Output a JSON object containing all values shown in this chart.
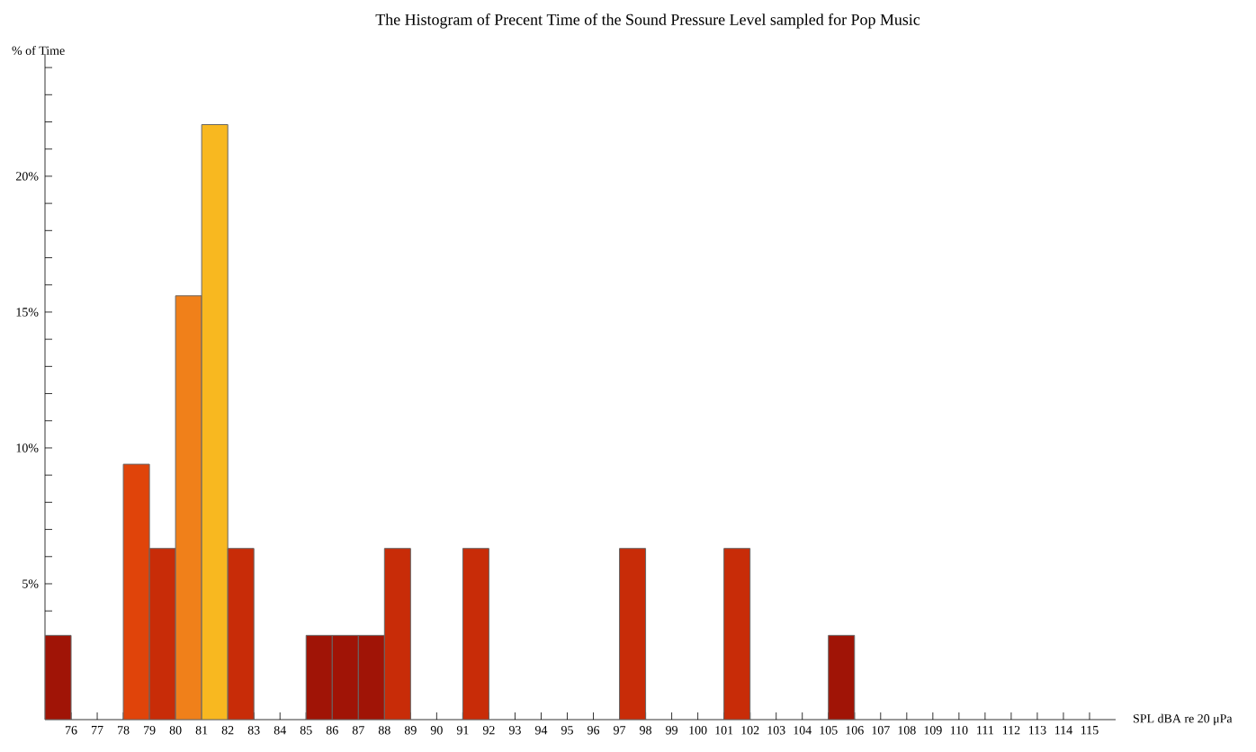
{
  "chart_data": {
    "type": "histogram",
    "title": "The Histogram of Precent Time of the Sound Pressure Level sampled for Pop Music",
    "xlabel": "SPL dBA re 20 μPa",
    "ylabel": "% of Time",
    "bins": [
      75,
      76,
      77,
      78,
      79,
      80,
      81,
      82,
      83,
      84,
      85,
      86,
      87,
      88,
      89,
      90,
      91,
      92,
      93,
      94,
      95,
      96,
      97,
      98,
      99,
      100,
      101,
      102,
      103,
      104,
      105,
      106
    ],
    "values": [
      3.1,
      0,
      0,
      9.4,
      6.3,
      15.6,
      21.9,
      6.3,
      0,
      0,
      3.1,
      3.1,
      3.1,
      6.3,
      0,
      0,
      6.3,
      0,
      0,
      0,
      0,
      0,
      6.3,
      0,
      0,
      0,
      6.3,
      0,
      0,
      0,
      3.1
    ],
    "colors": [
      "#a01406",
      "#a01406",
      "#a01406",
      "#e0440a",
      "#c82c08",
      "#f0801a",
      "#f8b820",
      "#c82c08",
      "#a01406",
      "#a01406",
      "#a01406",
      "#a01406",
      "#a01406",
      "#c82c08",
      "#a01406",
      "#a01406",
      "#c82c08",
      "#a01406",
      "#a01406",
      "#a01406",
      "#a01406",
      "#a01406",
      "#c82c08",
      "#a01406",
      "#a01406",
      "#a01406",
      "#c82c08",
      "#a01406",
      "#a01406",
      "#a01406",
      "#a01406"
    ],
    "xlim": [
      75,
      116
    ],
    "ylim": [
      0,
      24.5
    ],
    "xticks": [
      76,
      77,
      78,
      79,
      80,
      81,
      82,
      83,
      84,
      85,
      86,
      87,
      88,
      89,
      90,
      91,
      92,
      93,
      94,
      95,
      96,
      97,
      98,
      99,
      100,
      101,
      102,
      103,
      104,
      105,
      106,
      107,
      108,
      109,
      110,
      111,
      112,
      113,
      114,
      115
    ],
    "yticks": [
      {
        "value": 1,
        "label": null
      },
      {
        "value": 2,
        "label": null
      },
      {
        "value": 3,
        "label": null
      },
      {
        "value": 4,
        "label": null
      },
      {
        "value": 5,
        "label": "5%"
      },
      {
        "value": 6,
        "label": null
      },
      {
        "value": 7,
        "label": null
      },
      {
        "value": 8,
        "label": null
      },
      {
        "value": 9,
        "label": null
      },
      {
        "value": 10,
        "label": "10%"
      },
      {
        "value": 11,
        "label": null
      },
      {
        "value": 12,
        "label": null
      },
      {
        "value": 13,
        "label": null
      },
      {
        "value": 14,
        "label": null
      },
      {
        "value": 15,
        "label": "15%"
      },
      {
        "value": 16,
        "label": null
      },
      {
        "value": 17,
        "label": null
      },
      {
        "value": 18,
        "label": null
      },
      {
        "value": 19,
        "label": null
      },
      {
        "value": 20,
        "label": "20%"
      },
      {
        "value": 21,
        "label": null
      },
      {
        "value": 22,
        "label": null
      },
      {
        "value": 23,
        "label": null
      },
      {
        "value": 24,
        "label": null
      }
    ],
    "grid": false
  }
}
